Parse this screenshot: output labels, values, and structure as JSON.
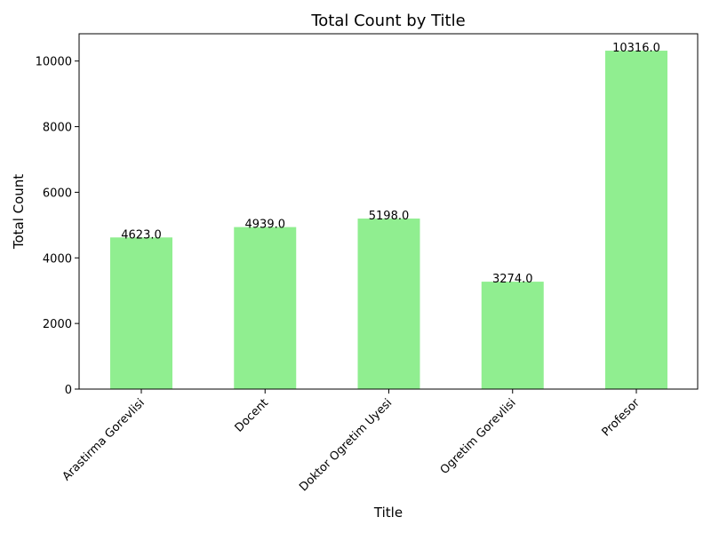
{
  "chart_data": {
    "type": "bar",
    "title": "Total Count by Title",
    "xlabel": "Title",
    "ylabel": "Total Count",
    "categories": [
      "Arastirma Gorevlisi",
      "Docent",
      "Doktor Ogretim Uyesi",
      "Ogretim Gorevlisi",
      "Profesor"
    ],
    "values": [
      4623,
      4939,
      5198,
      3274,
      10316
    ],
    "value_labels": [
      "4623.0",
      "4939.0",
      "5198.0",
      "3274.0",
      "10316.0"
    ],
    "yticks": [
      0,
      2000,
      4000,
      6000,
      8000,
      10000
    ],
    "ytick_labels": [
      "0",
      "2000",
      "4000",
      "6000",
      "8000",
      "10000"
    ],
    "ylim": [
      0,
      10832
    ],
    "grid": false,
    "bar_color": "#90ee90",
    "x_tick_rotation": "45 degrees"
  }
}
